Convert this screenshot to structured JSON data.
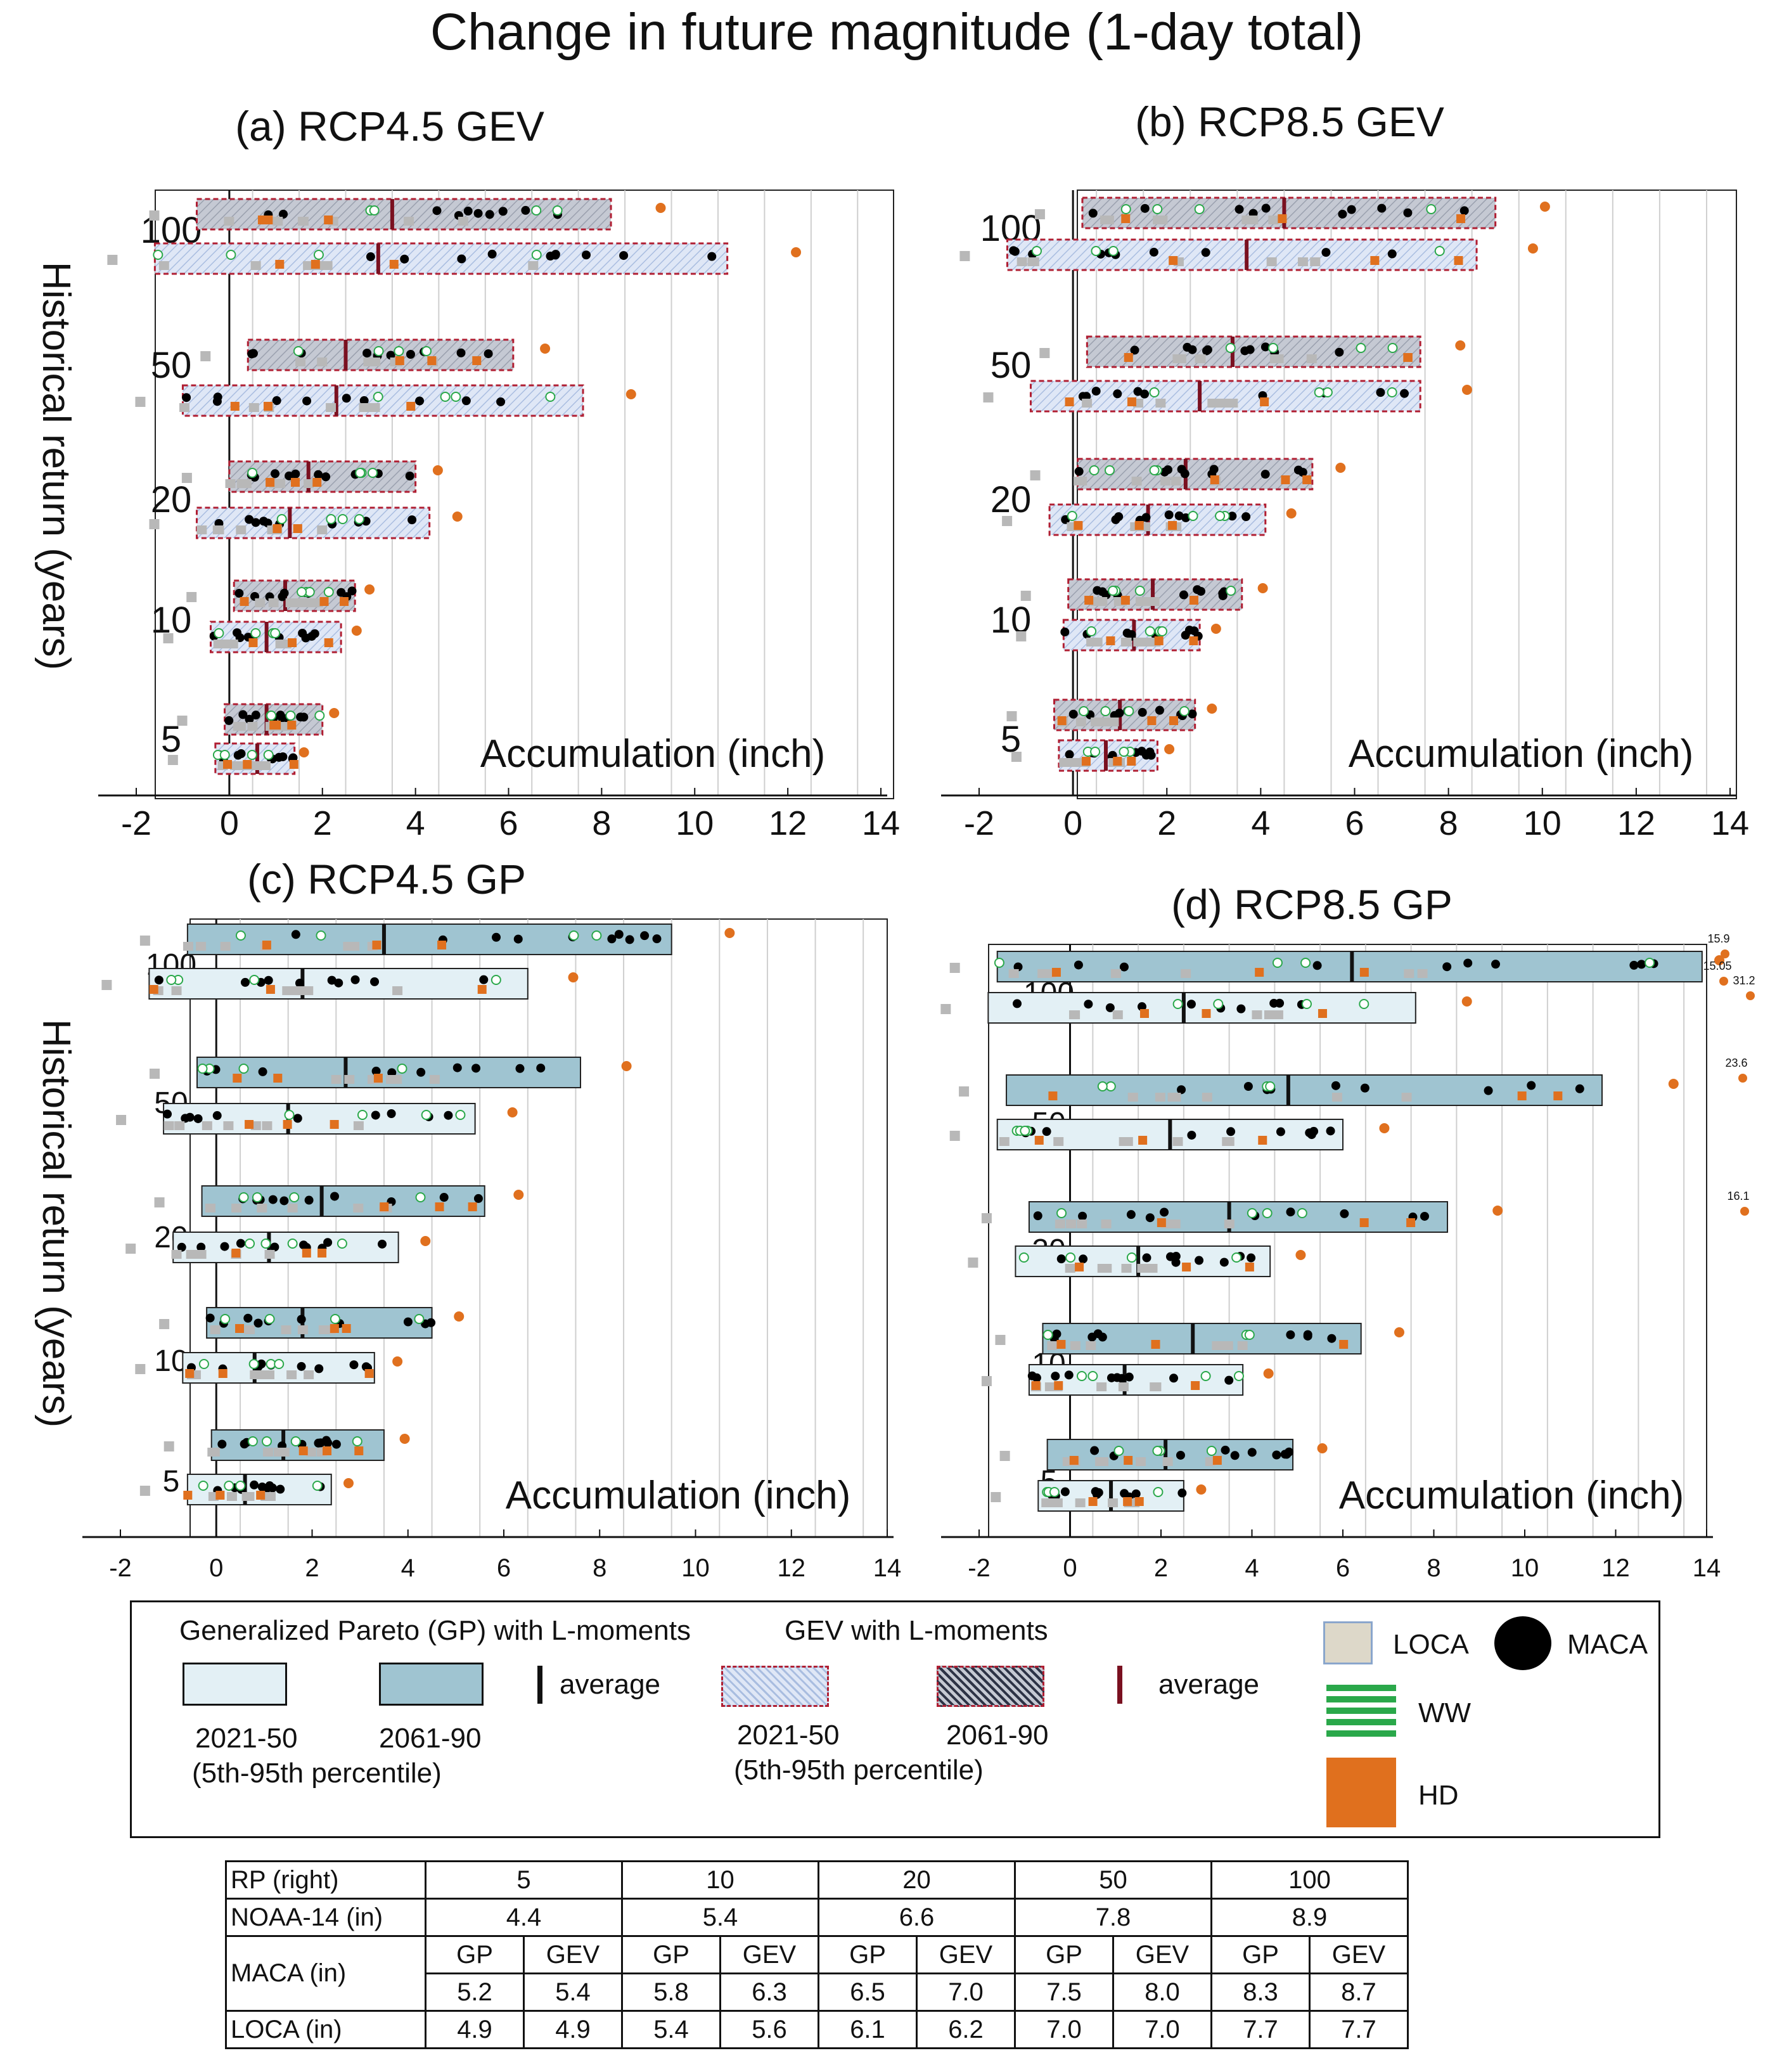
{
  "figure": {
    "title": "Change in future magnitude (1-day total)",
    "ylabel": "Historical return (years)",
    "xlabel": "Accumulation (inch)"
  },
  "chart_data": [
    {
      "id": "a",
      "type": "box-range",
      "title": "(a) RCP4.5 GEV",
      "method": "GEV",
      "xlabel": "Accumulation (inch)",
      "ylabel": "Historical return (years)",
      "xlim": [
        -2,
        14
      ],
      "xticks": [
        -2,
        0,
        2,
        4,
        6,
        8,
        10,
        12,
        14
      ],
      "return_periods": [
        100,
        50,
        20,
        10,
        5
      ],
      "ranges": [
        {
          "rp": 100,
          "period": "2061-90",
          "p5": -0.7,
          "p95": 8.2,
          "avg": 3.5
        },
        {
          "rp": 100,
          "period": "2021-50",
          "p5": -1.6,
          "p95": 10.7,
          "avg": 3.2
        },
        {
          "rp": 50,
          "period": "2061-90",
          "p5": 0.4,
          "p95": 6.1,
          "avg": 2.5
        },
        {
          "rp": 50,
          "period": "2021-50",
          "p5": -1.0,
          "p95": 7.6,
          "avg": 2.3
        },
        {
          "rp": 20,
          "period": "2061-90",
          "p5": 0.0,
          "p95": 4.0,
          "avg": 1.7
        },
        {
          "rp": 20,
          "period": "2021-50",
          "p5": -0.7,
          "p95": 4.3,
          "avg": 1.3
        },
        {
          "rp": 10,
          "period": "2061-90",
          "p5": 0.1,
          "p95": 2.7,
          "avg": 1.2
        },
        {
          "rp": 10,
          "period": "2021-50",
          "p5": -0.4,
          "p95": 2.4,
          "avg": 0.8
        },
        {
          "rp": 5,
          "period": "2061-90",
          "p5": -0.1,
          "p95": 2.0,
          "avg": 0.8
        },
        {
          "rp": 5,
          "period": "2021-50",
          "p5": -0.3,
          "p95": 1.4,
          "avg": 0.6
        }
      ]
    },
    {
      "id": "b",
      "type": "box-range",
      "title": "(b) RCP8.5 GEV",
      "method": "GEV",
      "xlabel": "Accumulation (inch)",
      "ylabel": "Historical return (years)",
      "xlim": [
        -2,
        14
      ],
      "xticks": [
        -2,
        0,
        2,
        4,
        6,
        8,
        10,
        12,
        14
      ],
      "return_periods": [
        100,
        50,
        20,
        10,
        5
      ],
      "ranges": [
        {
          "rp": 100,
          "period": "2061-90",
          "p5": 0.2,
          "p95": 9.0,
          "avg": 4.5
        },
        {
          "rp": 100,
          "period": "2021-50",
          "p5": -1.4,
          "p95": 8.6,
          "avg": 3.7
        },
        {
          "rp": 50,
          "period": "2061-90",
          "p5": 0.3,
          "p95": 7.4,
          "avg": 3.4
        },
        {
          "rp": 50,
          "period": "2021-50",
          "p5": -0.9,
          "p95": 7.4,
          "avg": 2.7
        },
        {
          "rp": 20,
          "period": "2061-90",
          "p5": 0.1,
          "p95": 5.1,
          "avg": 2.4
        },
        {
          "rp": 20,
          "period": "2021-50",
          "p5": -0.5,
          "p95": 4.1,
          "avg": 1.6
        },
        {
          "rp": 10,
          "period": "2061-90",
          "p5": -0.1,
          "p95": 3.6,
          "avg": 1.7
        },
        {
          "rp": 10,
          "period": "2021-50",
          "p5": -0.2,
          "p95": 2.7,
          "avg": 1.3
        },
        {
          "rp": 5,
          "period": "2061-90",
          "p5": -0.4,
          "p95": 2.6,
          "avg": 1.0
        },
        {
          "rp": 5,
          "period": "2021-50",
          "p5": -0.3,
          "p95": 1.8,
          "avg": 0.7
        }
      ]
    },
    {
      "id": "c",
      "type": "box-range",
      "title": "(c) RCP4.5 GP",
      "method": "GP",
      "xlabel": "Accumulation (inch)",
      "ylabel": "Historical return (years)",
      "xlim": [
        -2,
        14
      ],
      "xticks": [
        -2,
        0,
        2,
        4,
        6,
        8,
        10,
        12,
        14
      ],
      "return_periods": [
        100,
        50,
        20,
        10,
        5
      ],
      "ranges": [
        {
          "rp": 100,
          "period": "2061-90",
          "p5": -0.6,
          "p95": 9.5,
          "avg": 3.5
        },
        {
          "rp": 100,
          "period": "2021-50",
          "p5": -1.4,
          "p95": 6.5,
          "avg": 1.8
        },
        {
          "rp": 50,
          "period": "2061-90",
          "p5": -0.4,
          "p95": 7.6,
          "avg": 2.7
        },
        {
          "rp": 50,
          "period": "2021-50",
          "p5": -1.1,
          "p95": 5.4,
          "avg": 1.5
        },
        {
          "rp": 20,
          "period": "2061-90",
          "p5": -0.3,
          "p95": 5.6,
          "avg": 2.2
        },
        {
          "rp": 20,
          "period": "2021-50",
          "p5": -0.9,
          "p95": 3.8,
          "avg": 1.1
        },
        {
          "rp": 10,
          "period": "2061-90",
          "p5": -0.2,
          "p95": 4.5,
          "avg": 1.8
        },
        {
          "rp": 10,
          "period": "2021-50",
          "p5": -0.7,
          "p95": 3.3,
          "avg": 0.8
        },
        {
          "rp": 5,
          "period": "2061-90",
          "p5": -0.1,
          "p95": 3.5,
          "avg": 1.4
        },
        {
          "rp": 5,
          "period": "2021-50",
          "p5": -0.6,
          "p95": 2.4,
          "avg": 0.6
        }
      ]
    },
    {
      "id": "d",
      "type": "box-range",
      "title": "(d) RCP8.5 GP",
      "method": "GP",
      "xlabel": "Accumulation (inch)",
      "ylabel": "Historical return (years)",
      "xlim": [
        -2,
        14
      ],
      "xticks": [
        -2,
        0,
        2,
        4,
        6,
        8,
        10,
        12,
        14
      ],
      "return_periods": [
        100,
        50,
        20,
        10,
        5
      ],
      "ranges": [
        {
          "rp": 100,
          "period": "2061-90",
          "p5": -1.6,
          "p95": 13.9,
          "avg": 6.2
        },
        {
          "rp": 100,
          "period": "2021-50",
          "p5": -1.8,
          "p95": 7.6,
          "avg": 2.5
        },
        {
          "rp": 50,
          "period": "2061-90",
          "p5": -1.4,
          "p95": 11.7,
          "avg": 4.8
        },
        {
          "rp": 50,
          "period": "2021-50",
          "p5": -1.6,
          "p95": 6.0,
          "avg": 2.2
        },
        {
          "rp": 20,
          "period": "2061-90",
          "p5": -0.9,
          "p95": 8.3,
          "avg": 3.5
        },
        {
          "rp": 20,
          "period": "2021-50",
          "p5": -1.2,
          "p95": 4.4,
          "avg": 1.5
        },
        {
          "rp": 10,
          "period": "2061-90",
          "p5": -0.6,
          "p95": 6.4,
          "avg": 2.7
        },
        {
          "rp": 10,
          "period": "2021-50",
          "p5": -0.9,
          "p95": 3.8,
          "avg": 1.2
        },
        {
          "rp": 5,
          "period": "2061-90",
          "p5": -0.5,
          "p95": 4.9,
          "avg": 2.1
        },
        {
          "rp": 5,
          "period": "2021-50",
          "p5": -0.7,
          "p95": 2.5,
          "avg": 0.9
        }
      ],
      "offscale_labels": [
        "15.9",
        "15.05",
        "31.2",
        "23.6",
        "16.1"
      ]
    }
  ],
  "legend": {
    "gp_title": "Generalized Pareto (GP) with L-moments",
    "gev_title": "GEV with L-moments",
    "p1": "2021-50",
    "p2": "2061-90",
    "pct": "(5th-95th percentile)",
    "average": "average",
    "loca": "LOCA",
    "maca": "MACA",
    "ww": "WW",
    "hd": "HD"
  },
  "colors": {
    "gp_2021": "#e3f0f5",
    "gp_2061": "#9fc4d1",
    "gev_2021": "#dfe7f6",
    "gev_2061": "#c5c9d3",
    "gev_border": "#b01e32",
    "avg_gev": "#7a1020",
    "avg_gp": "#111111",
    "loca": "#b8b8b8",
    "maca": "#000000",
    "ww": "#2aa84a",
    "hd": "#e0701e",
    "grid": "#cfcfcf"
  },
  "table": {
    "rows": [
      {
        "label": "RP (right)",
        "values": [
          "5",
          "10",
          "20",
          "50",
          "100"
        ]
      },
      {
        "label": "NOAA-14 (in)",
        "values": [
          "4.4",
          "5.4",
          "6.6",
          "7.8",
          "8.9"
        ]
      },
      {
        "label": "",
        "values": [
          "GP",
          "GEV",
          "GP",
          "GEV",
          "GP",
          "GEV",
          "GP",
          "GEV",
          "GP",
          "GEV"
        ]
      },
      {
        "label": "MACA (in)",
        "values": [
          "5.2",
          "5.4",
          "5.8",
          "6.3",
          "6.5",
          "7.0",
          "7.5",
          "8.0",
          "8.3",
          "8.7"
        ]
      },
      {
        "label": "LOCA (in)",
        "values": [
          "4.9",
          "4.9",
          "5.4",
          "5.6",
          "6.1",
          "6.2",
          "7.0",
          "7.0",
          "7.7",
          "7.7"
        ]
      }
    ]
  }
}
